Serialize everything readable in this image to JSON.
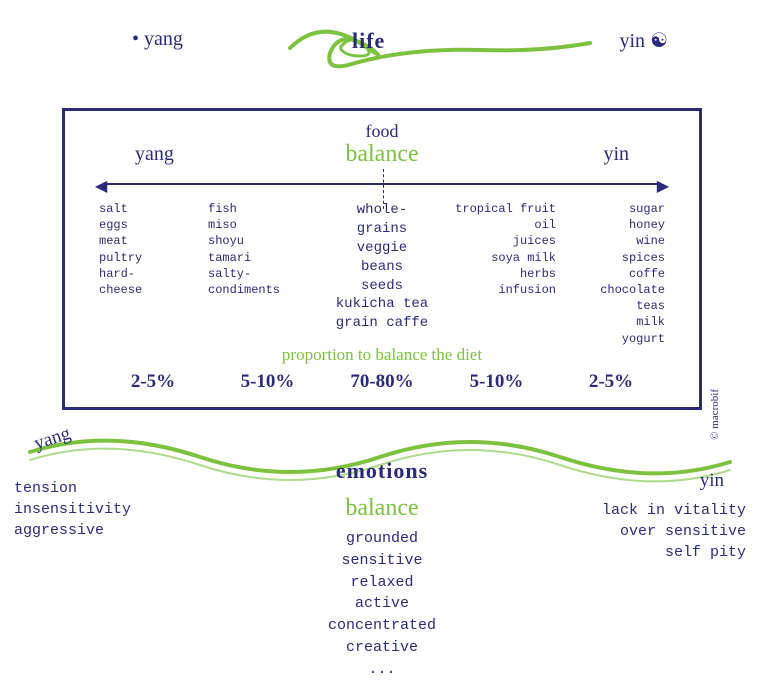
{
  "colors": {
    "navy": "#2a2a7a",
    "green": "#7cc23f",
    "background": "#ffffff"
  },
  "header": {
    "yang": "• yang",
    "yin": "yin",
    "life": "life"
  },
  "box": {
    "food": "food",
    "balance": "balance",
    "yang": "yang",
    "yin": "yin",
    "columns": [
      {
        "align": "left",
        "items": [
          "salt",
          "eggs",
          "meat",
          "pultry",
          "hard-",
          "cheese"
        ]
      },
      {
        "align": "left",
        "items": [
          "fish",
          "miso",
          "shoyu",
          "tamari",
          "salty-",
          "condiments"
        ]
      },
      {
        "align": "center",
        "items": [
          "whole-",
          "grains",
          "veggie",
          "beans",
          "seeds",
          "kukicha tea",
          "grain caffe"
        ]
      },
      {
        "align": "right",
        "items": [
          "tropical fruit",
          "oil",
          "juices",
          "soya milk",
          "herbs",
          "infusion"
        ]
      },
      {
        "align": "right",
        "items": [
          "sugar",
          "honey",
          "wine",
          "spices",
          "coffe",
          "chocolate",
          "teas",
          "milk",
          "yogurt"
        ]
      }
    ],
    "proportion": "proportion to balance the diet",
    "percents": [
      "2-5%",
      "5-10%",
      "70-80%",
      "5-10%",
      "2-5%"
    ],
    "copyright": "© macrobif"
  },
  "emotions": {
    "label": "emotions",
    "balance": "balance",
    "yang": "yang",
    "yin": "yin",
    "left": [
      "tension",
      "insensitivity",
      "aggressive"
    ],
    "right": [
      "lack in vitality",
      "over sensitive",
      "self pity"
    ],
    "center": [
      "grounded",
      "sensitive",
      "relaxed",
      "active",
      "concentrated",
      "creative",
      "..."
    ]
  }
}
